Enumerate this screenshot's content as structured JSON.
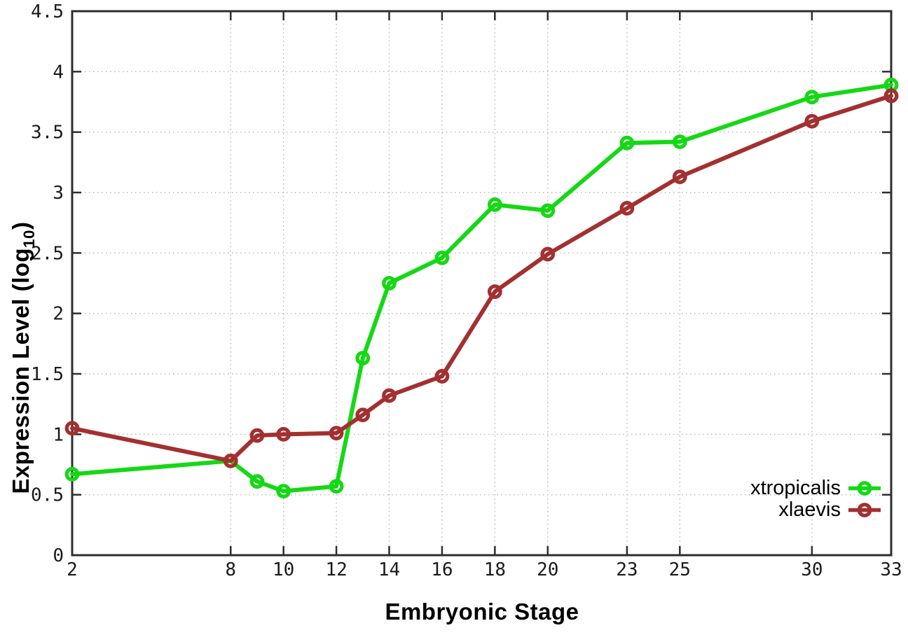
{
  "chart_data": {
    "type": "line",
    "title": "",
    "xlabel": "Embryonic Stage",
    "ylabel": "Expression Level (log10)",
    "ylabel_parts": {
      "prefix": "Expression Level (log",
      "sub": "10",
      "suffix": ")"
    },
    "xlim": [
      2,
      33
    ],
    "ylim": [
      0,
      4.5
    ],
    "x_tick_values": [
      2,
      8,
      10,
      12,
      14,
      16,
      18,
      20,
      23,
      25,
      30,
      33
    ],
    "x_tick_labels": [
      "2",
      "8",
      "10",
      "12",
      "14",
      "16",
      "18",
      "20",
      "23",
      "25",
      "30",
      "33"
    ],
    "y_tick_values": [
      0,
      0.5,
      1,
      1.5,
      2,
      2.5,
      3,
      3.5,
      4,
      4.5
    ],
    "y_tick_labels": [
      "0",
      "0.5",
      "1",
      "1.5",
      "2",
      "2.5",
      "3",
      "3.5",
      "4",
      "4.5"
    ],
    "grid": true,
    "legend_position": "bottom-right",
    "marker": "open-circle",
    "x": [
      2,
      8,
      9,
      10,
      12,
      13,
      14,
      16,
      18,
      20,
      23,
      25,
      30,
      33
    ],
    "series": [
      {
        "name": "xtropicalis",
        "color": "#15d815",
        "values": [
          0.67,
          0.78,
          0.61,
          0.53,
          0.57,
          1.63,
          2.25,
          2.46,
          2.9,
          2.85,
          3.41,
          3.42,
          3.79,
          3.89
        ]
      },
      {
        "name": "xlaevis",
        "color": "#a33030",
        "values": [
          1.05,
          0.78,
          0.99,
          1.0,
          1.01,
          1.16,
          1.32,
          1.48,
          2.18,
          2.49,
          2.87,
          3.13,
          3.59,
          3.8
        ]
      }
    ],
    "axis_color": "#2e2e2e",
    "grid_color": "#b5b5b5"
  }
}
